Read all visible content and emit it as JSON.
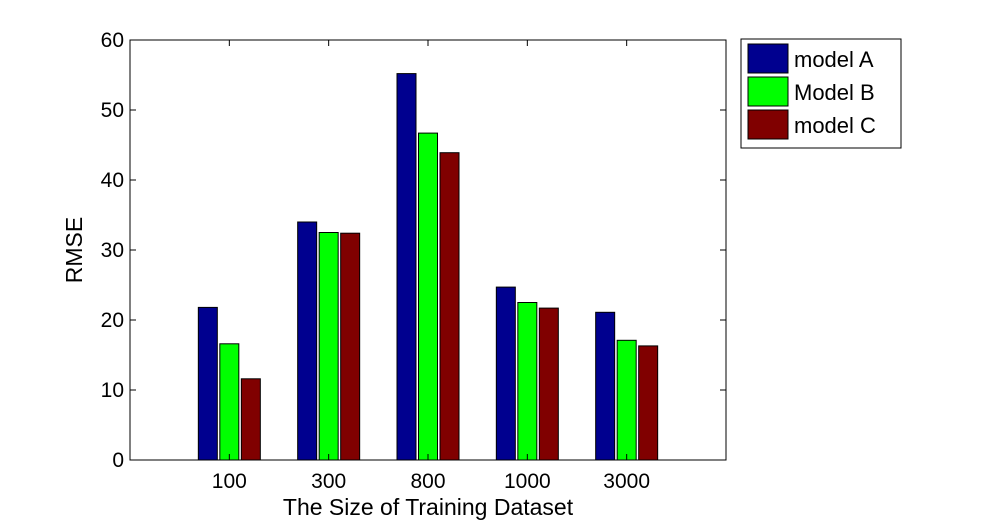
{
  "chart_data": {
    "type": "bar",
    "title": "",
    "xlabel": "The Size of Training Dataset",
    "ylabel": "RMSE",
    "categories": [
      "100",
      "300",
      "800",
      "1000",
      "3000"
    ],
    "ylim": [
      0,
      60
    ],
    "yticks": [
      0,
      10,
      20,
      30,
      40,
      50,
      60
    ],
    "grid": false,
    "legend_position": "outside-top-right",
    "series": [
      {
        "name": "model A",
        "color": "#00008f",
        "values": [
          21.8,
          34.0,
          55.2,
          24.7,
          21.1
        ]
      },
      {
        "name": "Model B",
        "color": "#00ff00",
        "values": [
          16.6,
          32.5,
          46.7,
          22.5,
          17.1
        ]
      },
      {
        "name": "model C",
        "color": "#800000",
        "values": [
          11.6,
          32.4,
          43.9,
          21.7,
          16.3
        ]
      }
    ]
  }
}
